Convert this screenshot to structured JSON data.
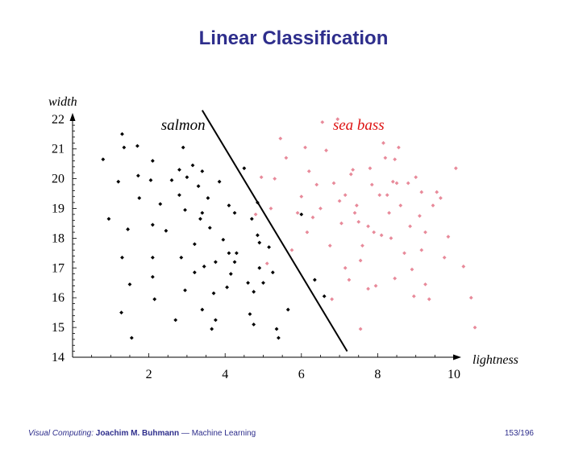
{
  "slide": {
    "title": "Linear Classification",
    "footer": {
      "course": "Visual Computing:",
      "author": "Joachim M. Buhmann",
      "separator": "—",
      "subject": "Machine Learning",
      "page": "153/196"
    }
  },
  "colors": {
    "title": "#2e2e8c",
    "salmon": "#000000",
    "sea_bass": "#e88a9a",
    "sea_bass_label": "#dd1111",
    "boundary": "#000000"
  },
  "chart_data": {
    "type": "scatter",
    "xlabel": "lightness",
    "ylabel": "width",
    "xlim": [
      0,
      11
    ],
    "ylim": [
      14,
      22.2
    ],
    "xticks": [
      "2",
      "4",
      "6",
      "8",
      "10"
    ],
    "yticks": [
      "14",
      "15",
      "16",
      "17",
      "18",
      "19",
      "20",
      "21",
      "22"
    ],
    "grid": false,
    "legend": "none",
    "annotations": [
      {
        "text": "salmon",
        "x": 2.9,
        "y": 21.8
      },
      {
        "text": "sea bass",
        "x": 7.5,
        "y": 21.8
      }
    ],
    "decision_boundary": {
      "x": [
        3.4,
        7.2
      ],
      "y": [
        22.3,
        14.2
      ]
    },
    "series": [
      {
        "name": "salmon",
        "points": [
          [
            0.8,
            20.65
          ],
          [
            0.95,
            18.65
          ],
          [
            1.2,
            19.9
          ],
          [
            1.3,
            21.5
          ],
          [
            1.35,
            21.05
          ],
          [
            1.3,
            17.35
          ],
          [
            1.28,
            15.5
          ],
          [
            1.45,
            18.3
          ],
          [
            1.5,
            16.45
          ],
          [
            1.55,
            14.65
          ],
          [
            1.7,
            21.1
          ],
          [
            1.72,
            20.1
          ],
          [
            1.75,
            19.35
          ],
          [
            2.05,
            19.95
          ],
          [
            2.1,
            20.6
          ],
          [
            2.1,
            18.45
          ],
          [
            2.1,
            17.35
          ],
          [
            2.1,
            16.7
          ],
          [
            2.15,
            15.95
          ],
          [
            2.3,
            19.15
          ],
          [
            2.45,
            18.25
          ],
          [
            2.6,
            19.95
          ],
          [
            2.7,
            15.25
          ],
          [
            2.8,
            20.3
          ],
          [
            2.8,
            19.45
          ],
          [
            2.85,
            17.35
          ],
          [
            2.9,
            21.05
          ],
          [
            2.95,
            16.25
          ],
          [
            3.0,
            20.05
          ],
          [
            2.95,
            18.95
          ],
          [
            3.15,
            20.45
          ],
          [
            3.2,
            17.8
          ],
          [
            3.2,
            16.85
          ],
          [
            3.3,
            19.75
          ],
          [
            3.35,
            18.65
          ],
          [
            3.4,
            20.25
          ],
          [
            3.4,
            18.85
          ],
          [
            3.45,
            17.05
          ],
          [
            3.4,
            15.6
          ],
          [
            3.55,
            19.35
          ],
          [
            3.6,
            18.35
          ],
          [
            3.65,
            14.95
          ],
          [
            3.7,
            16.15
          ],
          [
            3.75,
            17.2
          ],
          [
            3.75,
            15.25
          ],
          [
            3.85,
            19.9
          ],
          [
            3.95,
            17.95
          ],
          [
            4.05,
            16.35
          ],
          [
            4.1,
            19.1
          ],
          [
            4.1,
            17.5
          ],
          [
            4.15,
            16.8
          ],
          [
            4.25,
            18.85
          ],
          [
            4.25,
            17.2
          ],
          [
            4.3,
            17.5
          ],
          [
            4.5,
            20.35
          ],
          [
            4.6,
            16.5
          ],
          [
            4.65,
            15.45
          ],
          [
            4.7,
            18.65
          ],
          [
            4.75,
            16.2
          ],
          [
            4.75,
            15.1
          ],
          [
            4.85,
            18.1
          ],
          [
            4.85,
            19.2
          ],
          [
            4.9,
            17.85
          ],
          [
            4.9,
            17.0
          ],
          [
            5.0,
            16.5
          ],
          [
            5.15,
            17.7
          ],
          [
            5.25,
            16.85
          ],
          [
            5.35,
            14.95
          ],
          [
            5.4,
            14.65
          ],
          [
            5.65,
            15.6
          ],
          [
            6.0,
            18.8
          ],
          [
            6.35,
            16.6
          ],
          [
            6.6,
            16.05
          ]
        ]
      },
      {
        "name": "sea bass",
        "points": [
          [
            4.8,
            18.8
          ],
          [
            4.95,
            20.05
          ],
          [
            5.1,
            17.15
          ],
          [
            5.2,
            19.0
          ],
          [
            5.3,
            20.0
          ],
          [
            5.45,
            21.35
          ],
          [
            5.6,
            20.7
          ],
          [
            5.75,
            17.6
          ],
          [
            5.9,
            18.85
          ],
          [
            6.0,
            19.4
          ],
          [
            6.1,
            21.05
          ],
          [
            6.15,
            18.2
          ],
          [
            6.2,
            20.25
          ],
          [
            6.3,
            18.7
          ],
          [
            6.4,
            19.8
          ],
          [
            6.5,
            19.0
          ],
          [
            6.55,
            21.9
          ],
          [
            6.65,
            20.95
          ],
          [
            6.75,
            17.75
          ],
          [
            6.8,
            15.95
          ],
          [
            6.85,
            19.85
          ],
          [
            6.95,
            22.0
          ],
          [
            7.0,
            19.25
          ],
          [
            7.05,
            18.5
          ],
          [
            7.15,
            19.45
          ],
          [
            7.15,
            17.0
          ],
          [
            7.25,
            16.6
          ],
          [
            7.3,
            20.15
          ],
          [
            7.35,
            20.3
          ],
          [
            7.4,
            18.85
          ],
          [
            7.45,
            19.1
          ],
          [
            7.5,
            18.55
          ],
          [
            7.55,
            17.25
          ],
          [
            7.55,
            14.95
          ],
          [
            7.6,
            17.75
          ],
          [
            7.75,
            18.4
          ],
          [
            7.8,
            20.35
          ],
          [
            7.85,
            19.8
          ],
          [
            7.9,
            18.2
          ],
          [
            7.95,
            16.4
          ],
          [
            8.05,
            19.45
          ],
          [
            8.1,
            18.1
          ],
          [
            8.15,
            21.2
          ],
          [
            8.2,
            20.7
          ],
          [
            8.25,
            19.45
          ],
          [
            8.3,
            18.85
          ],
          [
            8.35,
            18.0
          ],
          [
            8.4,
            19.9
          ],
          [
            8.45,
            16.65
          ],
          [
            8.5,
            19.85
          ],
          [
            8.55,
            21.05
          ],
          [
            8.6,
            19.1
          ],
          [
            8.7,
            17.5
          ],
          [
            8.8,
            19.85
          ],
          [
            8.85,
            18.4
          ],
          [
            8.9,
            16.95
          ],
          [
            9.0,
            20.05
          ],
          [
            9.1,
            18.75
          ],
          [
            9.15,
            17.6
          ],
          [
            9.15,
            19.55
          ],
          [
            9.25,
            18.2
          ],
          [
            9.35,
            15.95
          ],
          [
            9.45,
            19.1
          ],
          [
            9.55,
            19.55
          ],
          [
            9.65,
            19.35
          ],
          [
            9.75,
            17.35
          ],
          [
            9.85,
            18.05
          ],
          [
            10.05,
            20.35
          ],
          [
            10.25,
            17.05
          ],
          [
            10.45,
            16.0
          ],
          [
            10.55,
            15.0
          ],
          [
            8.95,
            16.05
          ],
          [
            9.25,
            16.45
          ],
          [
            7.75,
            16.3
          ],
          [
            8.45,
            20.65
          ]
        ]
      }
    ]
  }
}
